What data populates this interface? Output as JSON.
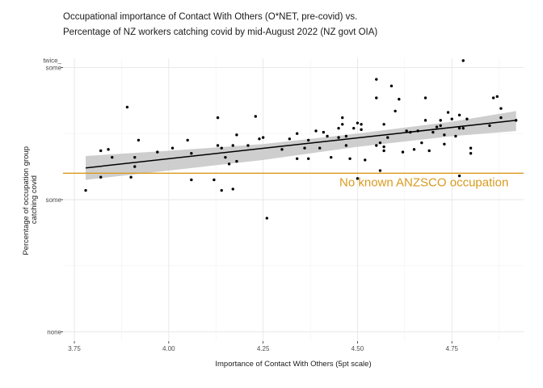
{
  "chart_data": {
    "type": "scatter",
    "title_lines": [
      "Occupational importance of Contact With Others (O*NET, pre-covid) vs.",
      "Percentage of NZ workers catching covid by mid-August 2022 (NZ govt OIA)"
    ],
    "xlabel": "Importance of Contact With Others (5pt scale)",
    "ylabel_lines": [
      "Percentage of occupation group",
      "catching covid"
    ],
    "xlim": [
      3.72,
      4.94
    ],
    "ylim": [
      -0.07,
      2.07
    ],
    "x_ticks": [
      3.75,
      4.0,
      4.25,
      4.5,
      4.75
    ],
    "x_tick_labels": [
      "3.75",
      "4.00",
      "4.25",
      "4.50",
      "4.75"
    ],
    "y_ticks": [
      0,
      1,
      2
    ],
    "y_tick_labels": [
      "none",
      "some",
      "twice_\nsome"
    ],
    "grid": true,
    "points": [
      [
        3.78,
        1.07
      ],
      [
        3.82,
        1.17
      ],
      [
        3.82,
        1.37
      ],
      [
        3.84,
        1.38
      ],
      [
        3.85,
        1.32
      ],
      [
        3.89,
        1.7
      ],
      [
        3.9,
        1.17
      ],
      [
        3.91,
        1.32
      ],
      [
        3.91,
        1.25
      ],
      [
        3.92,
        1.45
      ],
      [
        3.97,
        1.36
      ],
      [
        4.01,
        1.39
      ],
      [
        4.05,
        1.45
      ],
      [
        4.06,
        1.35
      ],
      [
        4.06,
        1.15
      ],
      [
        4.12,
        1.15
      ],
      [
        4.13,
        1.41
      ],
      [
        4.13,
        1.62
      ],
      [
        4.14,
        1.07
      ],
      [
        4.14,
        1.39
      ],
      [
        4.15,
        1.32
      ],
      [
        4.16,
        1.27
      ],
      [
        4.17,
        1.08
      ],
      [
        4.17,
        1.41
      ],
      [
        4.18,
        1.49
      ],
      [
        4.18,
        1.29
      ],
      [
        4.21,
        1.41
      ],
      [
        4.23,
        1.63
      ],
      [
        4.24,
        1.46
      ],
      [
        4.25,
        1.47
      ],
      [
        4.26,
        0.86
      ],
      [
        4.3,
        1.38
      ],
      [
        4.32,
        1.46
      ],
      [
        4.34,
        1.5
      ],
      [
        4.34,
        1.31
      ],
      [
        4.36,
        1.39
      ],
      [
        4.37,
        1.45
      ],
      [
        4.37,
        1.31
      ],
      [
        4.39,
        1.52
      ],
      [
        4.4,
        1.39
      ],
      [
        4.41,
        1.51
      ],
      [
        4.42,
        1.48
      ],
      [
        4.43,
        1.32
      ],
      [
        4.45,
        1.54
      ],
      [
        4.45,
        1.47
      ],
      [
        4.46,
        1.62
      ],
      [
        4.46,
        1.57
      ],
      [
        4.47,
        1.41
      ],
      [
        4.47,
        1.48
      ],
      [
        4.48,
        1.31
      ],
      [
        4.49,
        1.54
      ],
      [
        4.5,
        1.58
      ],
      [
        4.5,
        1.16
      ],
      [
        4.51,
        1.57
      ],
      [
        4.51,
        1.53
      ],
      [
        4.52,
        1.3
      ],
      [
        4.55,
        1.91
      ],
      [
        4.55,
        1.77
      ],
      [
        4.55,
        1.41
      ],
      [
        4.56,
        1.22
      ],
      [
        4.56,
        1.43
      ],
      [
        4.57,
        1.4
      ],
      [
        4.57,
        1.37
      ],
      [
        4.57,
        1.57
      ],
      [
        4.58,
        1.47
      ],
      [
        4.59,
        1.86
      ],
      [
        4.6,
        1.67
      ],
      [
        4.61,
        1.76
      ],
      [
        4.62,
        1.36
      ],
      [
        4.63,
        1.52
      ],
      [
        4.64,
        1.51
      ],
      [
        4.65,
        1.38
      ],
      [
        4.66,
        1.52
      ],
      [
        4.67,
        1.43
      ],
      [
        4.68,
        1.77
      ],
      [
        4.68,
        1.6
      ],
      [
        4.69,
        1.37
      ],
      [
        4.7,
        1.51
      ],
      [
        4.71,
        1.55
      ],
      [
        4.72,
        1.6
      ],
      [
        4.72,
        1.56
      ],
      [
        4.73,
        1.42
      ],
      [
        4.73,
        1.49
      ],
      [
        4.74,
        1.66
      ],
      [
        4.75,
        1.61
      ],
      [
        4.76,
        1.48
      ],
      [
        4.77,
        1.64
      ],
      [
        4.77,
        1.54
      ],
      [
        4.77,
        1.18
      ],
      [
        4.78,
        2.14
      ],
      [
        4.78,
        1.54
      ],
      [
        4.79,
        1.61
      ],
      [
        4.8,
        1.39
      ],
      [
        4.8,
        1.35
      ],
      [
        4.85,
        1.56
      ],
      [
        4.86,
        1.77
      ],
      [
        4.87,
        1.78
      ],
      [
        4.88,
        1.62
      ],
      [
        4.88,
        1.69
      ],
      [
        4.92,
        1.6
      ]
    ],
    "trend": {
      "x": [
        3.78,
        4.92
      ],
      "y": [
        1.24,
        1.6
      ],
      "band_x": [
        3.78,
        4.0,
        4.25,
        4.5,
        4.75,
        4.92
      ],
      "band_lower": [
        1.15,
        1.22,
        1.3,
        1.4,
        1.48,
        1.52
      ],
      "band_upper": [
        1.33,
        1.37,
        1.42,
        1.5,
        1.59,
        1.67
      ]
    },
    "reference_line": {
      "y": 1.2,
      "label": "No known ANZSCO occupation",
      "color": "#d99a1f"
    }
  }
}
